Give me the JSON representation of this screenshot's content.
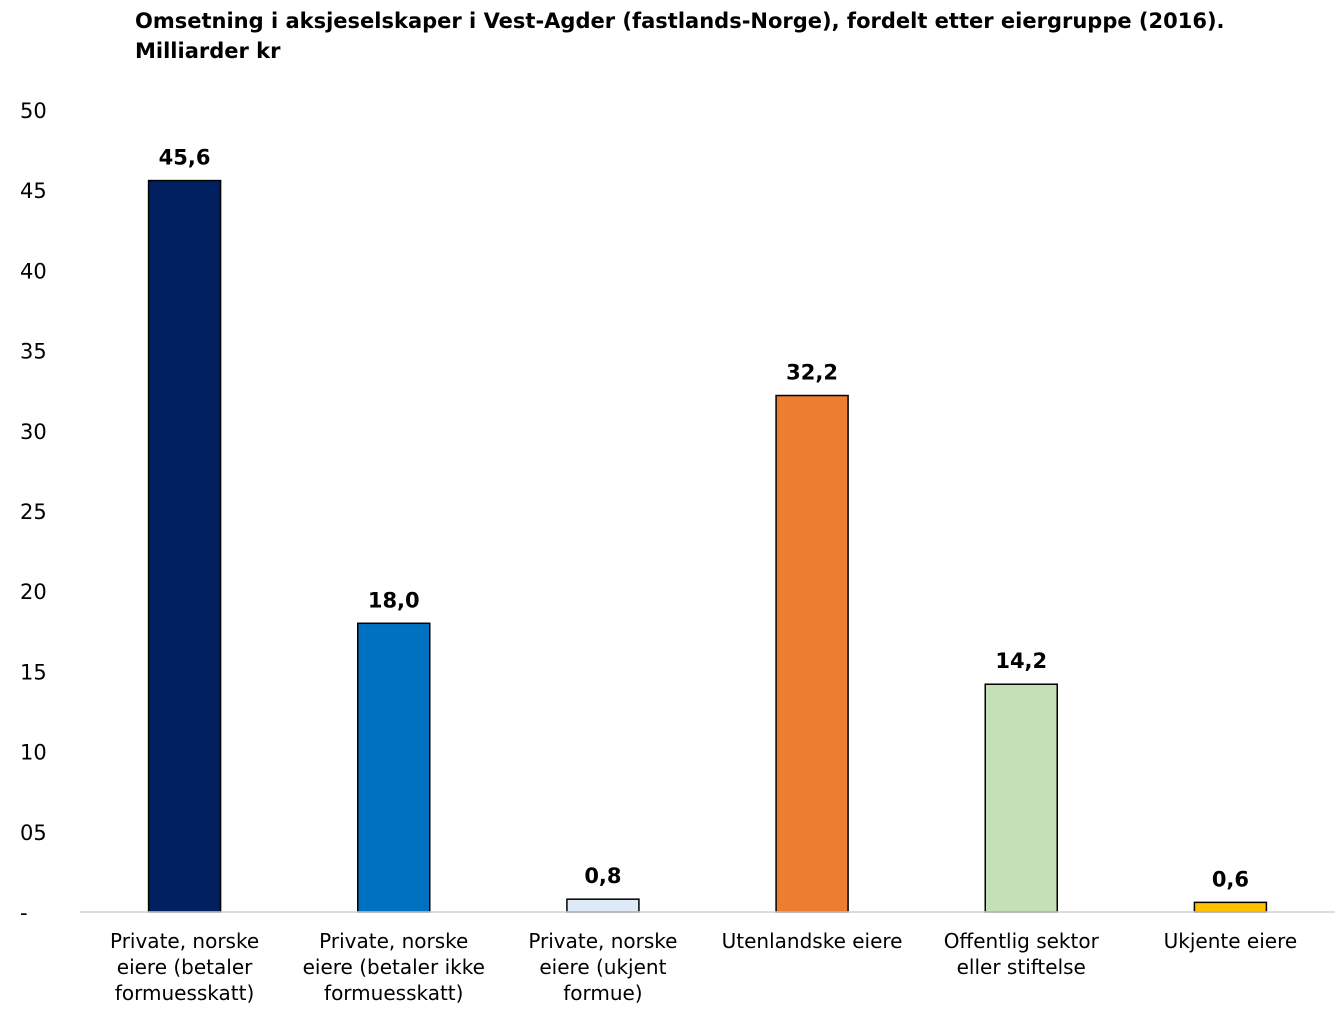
{
  "chart_data": {
    "type": "bar",
    "title": "Omsetning i aksjeselskaper i Vest-Agder (fastlands-Norge), fordelt etter eiergruppe (2016). Milliarder kr",
    "categories": [
      "Private, norske\neiere (betaler\nformuesskatt)",
      "Private, norske\neiere (betaler ikke\nformuesskatt)",
      "Private, norske\neiere (ukjent\nformue)",
      "Utenlandske eiere",
      "Offentlig sektor\neller stiftelse",
      "Ukjente eiere"
    ],
    "values": [
      45.6,
      18.0,
      0.8,
      32.2,
      14.2,
      0.6
    ],
    "value_labels": [
      "45,6",
      "18,0",
      "0,8",
      "32,2",
      "14,2",
      "0,6"
    ],
    "colors": [
      "#002060",
      "#0070C0",
      "#DEEBF7",
      "#ED7D31",
      "#C5E0B4",
      "#FFC000"
    ],
    "ylim": [
      0,
      50
    ],
    "yticks": [
      0,
      5,
      10,
      15,
      20,
      25,
      30,
      35,
      40,
      45,
      50
    ],
    "ytick_labels": [
      "-",
      "05",
      "10",
      "15",
      "20",
      "25",
      "30",
      "35",
      "40",
      "45",
      "50"
    ],
    "xlabel": "",
    "ylabel": "",
    "grid": false,
    "legend": "none"
  }
}
